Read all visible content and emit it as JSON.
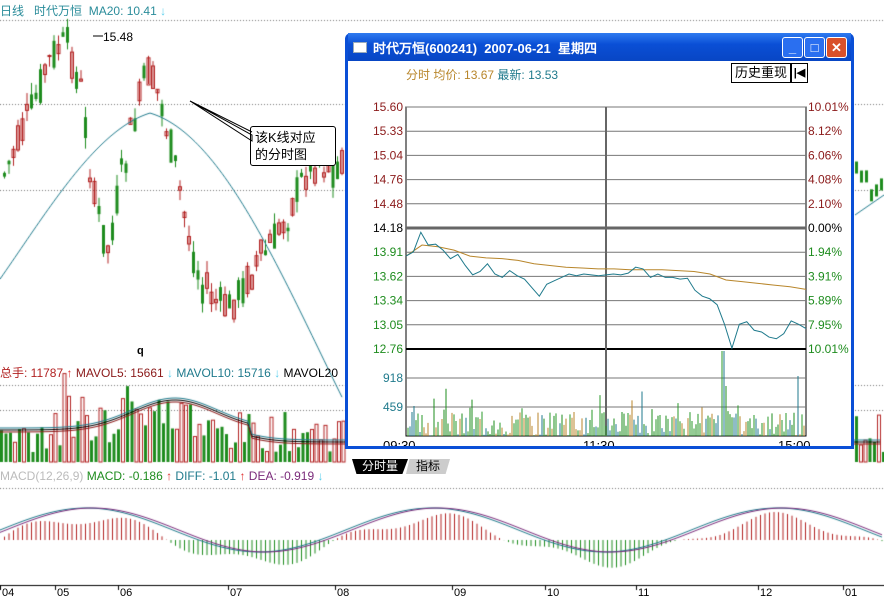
{
  "kline": {
    "period": "日线",
    "stock": "时代万恒",
    "ma20_label": "MA20: 10.41",
    "ma20_arrow": "down",
    "high_marker": "15.48",
    "low_marker": "q"
  },
  "annotation": {
    "line1": "该K线对应",
    "line2": "的分时图"
  },
  "volume": {
    "total_label": "总手: 11787",
    "mavol5": "MAVOL5: 15661",
    "mavol10": "MAVOL10: 15716",
    "mavol20": "MAVOL20"
  },
  "macd": {
    "name": "MACD(12,26,9)",
    "macd": "MACD: -0.186",
    "diff": "DIFF: -1.01",
    "dea": "DEA: -0.919"
  },
  "months": [
    "04",
    "05",
    "06",
    "07",
    "08",
    "09",
    "10",
    "11",
    "12",
    "01"
  ],
  "window": {
    "title": "时代万恒(600241)  2007-06-21  星期四",
    "header_prefix": "分时",
    "avg": "均价: 13.67",
    "latest": "最新: 13.53",
    "replay_button": "历史重现",
    "tabs": [
      "分时量",
      "指标"
    ]
  },
  "colors": {
    "up": "#b22222",
    "down": "#1e8c1e",
    "price_line": "#1f7a8c",
    "avg_line": "#b8862b",
    "title_bar": "#0a4fd6"
  },
  "chart_data": {
    "type": "line",
    "price_ticks": [
      "15.60",
      "15.33",
      "15.04",
      "14.76",
      "14.48",
      "14.18",
      "13.91",
      "13.62",
      "13.34",
      "13.05",
      "12.76"
    ],
    "pct_ticks": [
      "10.01%",
      "8.12%",
      "6.06%",
      "4.08%",
      "2.10%",
      "0.00%",
      "1.94%",
      "3.91%",
      "5.89%",
      "7.95%",
      "10.01%"
    ],
    "volume_ticks": [
      "918",
      "459"
    ],
    "time_ticks": [
      "09:30",
      "11:30",
      "15:00"
    ],
    "prev_close": 14.18,
    "ylim": [
      12.76,
      15.6
    ],
    "price": [
      13.85,
      13.9,
      14.13,
      13.98,
      13.99,
      13.92,
      13.82,
      13.87,
      13.74,
      13.63,
      13.67,
      13.76,
      13.64,
      13.6,
      13.68,
      13.62,
      13.58,
      13.48,
      13.38,
      13.52,
      13.56,
      13.6,
      13.64,
      13.62,
      13.64,
      13.63,
      13.62,
      13.63,
      13.64,
      13.63,
      13.65,
      13.72,
      13.7,
      13.6,
      13.64,
      13.6,
      13.6,
      13.58,
      13.59,
      13.45,
      13.38,
      13.35,
      13.28,
      13.05,
      12.77,
      13.05,
      13.08,
      12.98,
      12.96,
      12.9,
      12.88,
      12.94,
      13.09,
      13.05,
      13.0
    ],
    "avg": [
      13.85,
      13.98,
      13.96,
      13.92,
      13.85,
      13.83,
      13.82,
      13.8,
      13.76,
      13.74,
      13.72,
      13.71,
      13.7,
      13.7,
      13.69,
      13.69,
      13.69,
      13.68,
      13.67,
      13.64,
      13.57,
      13.55,
      13.53,
      13.51,
      13.49,
      13.46
    ]
  }
}
